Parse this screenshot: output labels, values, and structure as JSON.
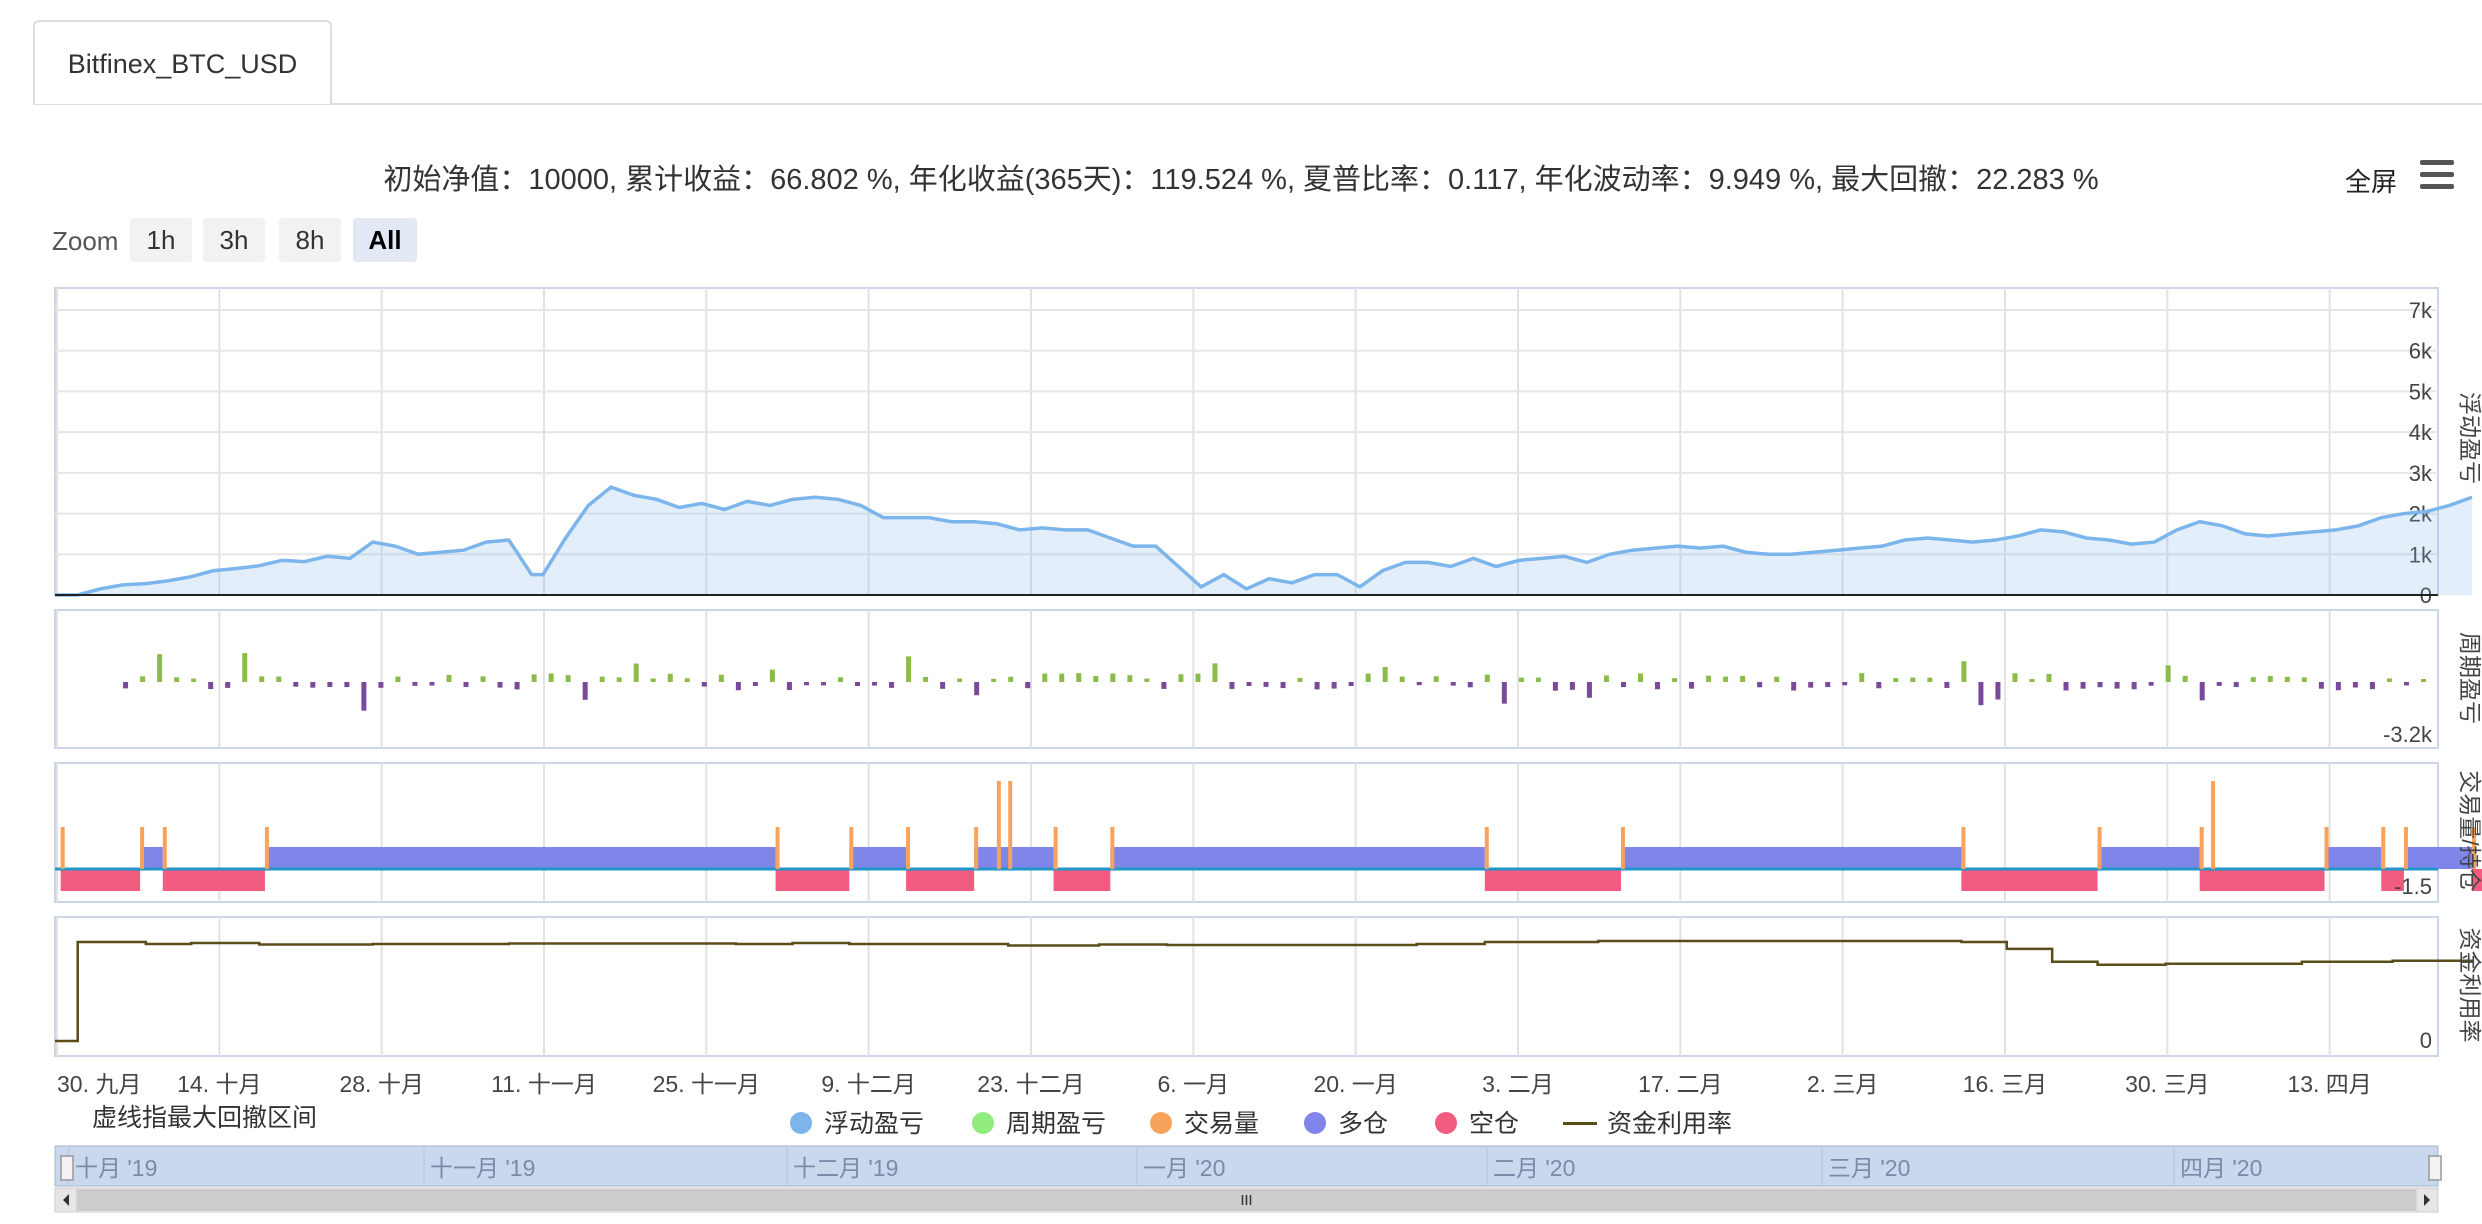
{
  "tab": {
    "label": "Bitfinex_BTC_USD"
  },
  "stats": {
    "text": "初始净值：10000, 累计收益：66.802 %, 年化收益(365天)：119.524 %, 夏普比率：0.117, 年化波动率：9.949 %, 最大回撤：22.283 %"
  },
  "toolbar": {
    "fullscreen_label": "全屏",
    "menu_icon": "hamburger-menu-icon"
  },
  "zoom": {
    "label": "Zoom",
    "buttons": [
      "1h",
      "3h",
      "8h",
      "All"
    ],
    "active": "All"
  },
  "note": "虚线指最大回撤区间",
  "legend": [
    {
      "label": "浮动盈亏",
      "color": "#7cb5ec",
      "shape": "circle"
    },
    {
      "label": "周期盈亏",
      "color": "#90ed7d",
      "shape": "circle"
    },
    {
      "label": "交易量",
      "color": "#f7a35c",
      "shape": "circle"
    },
    {
      "label": "多仓",
      "color": "#8085e9",
      "shape": "circle"
    },
    {
      "label": "空仓",
      "color": "#f15c80",
      "shape": "circle"
    },
    {
      "label": "资金利用率",
      "color": "#5a4d1a",
      "shape": "line"
    }
  ],
  "navigator": {
    "labels": [
      "十月 '19",
      "十一月 '19",
      "十二月 '19",
      "一月 '20",
      "二月 '20",
      "三月 '20",
      "四月 '20"
    ],
    "scroll_left_icon": "arrow-left-icon",
    "scroll_right_icon": "arrow-right-icon",
    "scroll_grip_icon": "grip-icon"
  },
  "chart_data": {
    "type": "line",
    "x_labels": [
      "30. 九月",
      "14. 十月",
      "28. 十月",
      "11. 十一月",
      "25. 十一月",
      "9. 十二月",
      "23. 十二月",
      "6. 一月",
      "20. 一月",
      "3. 二月",
      "17. 二月",
      "2. 三月",
      "16. 三月",
      "30. 三月",
      "13. 四月"
    ],
    "x_count": 210,
    "panes": [
      {
        "axis_title": "浮动盈亏",
        "ticks": [
          "0",
          "1k",
          "2k",
          "3k",
          "4k",
          "5k",
          "6k",
          "7k"
        ],
        "ylim": [
          0,
          7000
        ],
        "area_color": "#7cb5ec",
        "series": {
          "name": "浮动盈亏",
          "points": [
            [
              0,
              0
            ],
            [
              2,
              0
            ],
            [
              4,
              150
            ],
            [
              6,
              250
            ],
            [
              8,
              280
            ],
            [
              10,
              350
            ],
            [
              12,
              450
            ],
            [
              14,
              600
            ],
            [
              16,
              650
            ],
            [
              18,
              720
            ],
            [
              20,
              850
            ],
            [
              22,
              820
            ],
            [
              24,
              950
            ],
            [
              26,
              900
            ],
            [
              28,
              1300
            ],
            [
              30,
              1200
            ],
            [
              32,
              1000
            ],
            [
              34,
              1050
            ],
            [
              36,
              1100
            ],
            [
              38,
              1300
            ],
            [
              40,
              1350
            ],
            [
              42,
              500
            ],
            [
              43,
              500
            ],
            [
              45,
              1400
            ],
            [
              47,
              2200
            ],
            [
              49,
              2650
            ],
            [
              51,
              2450
            ],
            [
              53,
              2350
            ],
            [
              55,
              2150
            ],
            [
              57,
              2250
            ],
            [
              59,
              2100
            ],
            [
              61,
              2300
            ],
            [
              63,
              2200
            ],
            [
              65,
              2350
            ],
            [
              67,
              2400
            ],
            [
              69,
              2350
            ],
            [
              71,
              2200
            ],
            [
              73,
              1900
            ],
            [
              75,
              1900
            ],
            [
              77,
              1900
            ],
            [
              79,
              1800
            ],
            [
              81,
              1800
            ],
            [
              83,
              1750
            ],
            [
              85,
              1600
            ],
            [
              87,
              1650
            ],
            [
              89,
              1600
            ],
            [
              91,
              1600
            ],
            [
              93,
              1400
            ],
            [
              95,
              1200
            ],
            [
              97,
              1200
            ],
            [
              99,
              700
            ],
            [
              101,
              200
            ],
            [
              103,
              500
            ],
            [
              105,
              150
            ],
            [
              107,
              400
            ],
            [
              109,
              300
            ],
            [
              111,
              500
            ],
            [
              113,
              500
            ],
            [
              115,
              200
            ],
            [
              117,
              600
            ],
            [
              119,
              800
            ],
            [
              121,
              800
            ],
            [
              123,
              700
            ],
            [
              125,
              900
            ],
            [
              127,
              700
            ],
            [
              129,
              850
            ],
            [
              131,
              900
            ],
            [
              133,
              950
            ],
            [
              135,
              800
            ],
            [
              137,
              1000
            ],
            [
              139,
              1100
            ],
            [
              141,
              1150
            ],
            [
              143,
              1200
            ],
            [
              145,
              1150
            ],
            [
              147,
              1200
            ],
            [
              149,
              1050
            ],
            [
              151,
              1000
            ],
            [
              153,
              1000
            ],
            [
              155,
              1050
            ],
            [
              157,
              1100
            ],
            [
              159,
              1150
            ],
            [
              161,
              1200
            ],
            [
              163,
              1350
            ],
            [
              165,
              1400
            ],
            [
              167,
              1350
            ],
            [
              169,
              1300
            ],
            [
              171,
              1350
            ],
            [
              173,
              1450
            ],
            [
              175,
              1600
            ],
            [
              177,
              1550
            ],
            [
              179,
              1400
            ],
            [
              181,
              1350
            ],
            [
              183,
              1250
            ],
            [
              185,
              1300
            ],
            [
              187,
              1600
            ],
            [
              189,
              1800
            ],
            [
              191,
              1700
            ],
            [
              193,
              1500
            ],
            [
              195,
              1450
            ],
            [
              197,
              1500
            ],
            [
              199,
              1550
            ],
            [
              201,
              1600
            ],
            [
              203,
              1700
            ],
            [
              205,
              1900
            ],
            [
              207,
              2000
            ],
            [
              209,
              2050
            ],
            [
              211,
              2200
            ],
            [
              213,
              2400
            ]
          ]
        }
      },
      {
        "axis_title": "周期盈亏",
        "ticks": [
          "-3.2k"
        ],
        "bar_color_pos": "#8bbc4a",
        "bar_color_neg": "#7a4a9a"
      },
      {
        "axis_title": "交易量/持仓",
        "ticks": [
          "-1.5"
        ],
        "long_color": "#8085e9",
        "short_color": "#f15c80",
        "volume_color": "#f7a35c"
      },
      {
        "axis_title": "资金利用率",
        "ticks": [
          "0"
        ],
        "line_color": "#5a4d1a"
      }
    ]
  }
}
